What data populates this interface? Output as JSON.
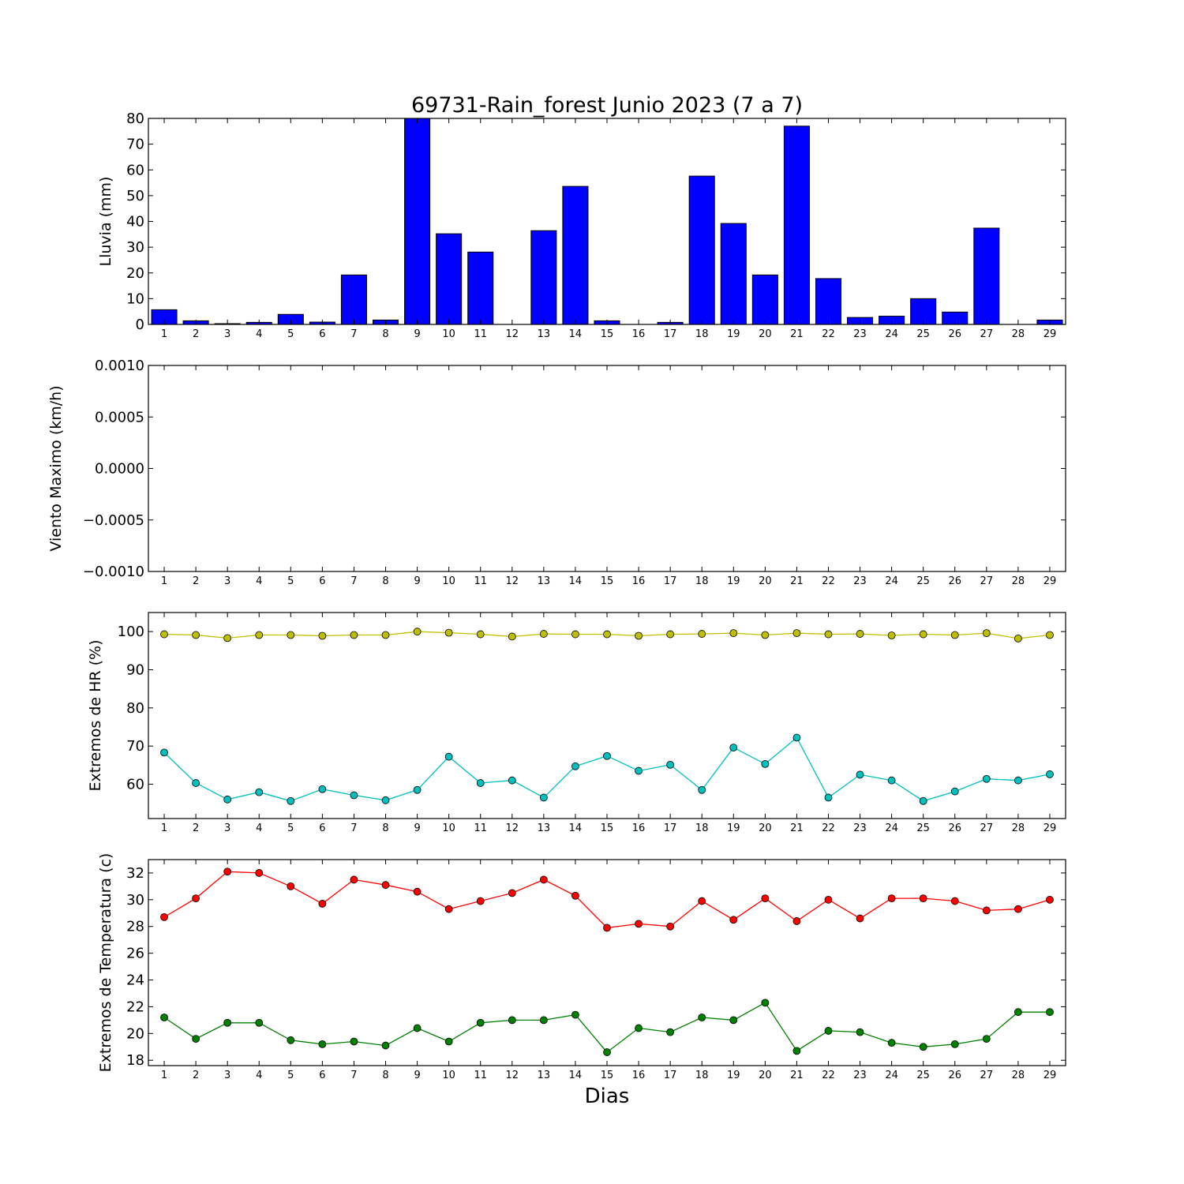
{
  "title": "69731-Rain_forest Junio 2023  (7 a 7)",
  "xlabel": "Dias",
  "chart_data": [
    {
      "type": "bar",
      "ylabel": "Lluvia (mm)",
      "ylim": [
        0,
        80
      ],
      "yticks": [
        "0",
        "10",
        "20",
        "30",
        "40",
        "50",
        "60",
        "70",
        "80"
      ],
      "categories": [
        "1",
        "2",
        "3",
        "4",
        "5",
        "6",
        "7",
        "8",
        "9",
        "10",
        "11",
        "12",
        "13",
        "14",
        "15",
        "16",
        "17",
        "18",
        "19",
        "20",
        "21",
        "22",
        "23",
        "24",
        "25",
        "26",
        "27",
        "28",
        "29"
      ],
      "values": [
        5.7,
        1.4,
        0.3,
        0.8,
        3.9,
        0.9,
        19.2,
        1.7,
        80.0,
        35.2,
        28.1,
        0.0,
        36.4,
        53.6,
        1.4,
        0.0,
        0.8,
        57.6,
        39.2,
        19.2,
        77.0,
        17.8,
        2.7,
        3.2,
        10.0,
        4.8,
        37.4,
        0.0,
        1.7
      ],
      "color": "#0000ff"
    },
    {
      "type": "line",
      "ylabel": "Viento Maximo (km/h)",
      "ylim": [
        -0.001,
        0.001
      ],
      "yticks": [
        "0.0010",
        "0.0005",
        "0.0000",
        "−0.0005",
        "−0.0010"
      ],
      "categories": [
        "1",
        "2",
        "3",
        "4",
        "5",
        "6",
        "7",
        "8",
        "9",
        "10",
        "11",
        "12",
        "13",
        "14",
        "15",
        "16",
        "17",
        "18",
        "19",
        "20",
        "21",
        "22",
        "23",
        "24",
        "25",
        "26",
        "27",
        "28",
        "29"
      ],
      "series": []
    },
    {
      "type": "line",
      "ylabel": "Extremos de HR (%)",
      "ylim": [
        51,
        105
      ],
      "yticks": [
        "60",
        "70",
        "80",
        "90",
        "100"
      ],
      "yticks_values": [
        60,
        70,
        80,
        90,
        100
      ],
      "categories": [
        "1",
        "2",
        "3",
        "4",
        "5",
        "6",
        "7",
        "8",
        "9",
        "10",
        "11",
        "12",
        "13",
        "14",
        "15",
        "16",
        "17",
        "18",
        "19",
        "20",
        "21",
        "22",
        "23",
        "24",
        "25",
        "26",
        "27",
        "28",
        "29"
      ],
      "series": [
        {
          "color": "#bfbf00",
          "values": [
            99.3,
            99.1,
            98.3,
            99.1,
            99.1,
            98.9,
            99.1,
            99.1,
            100.0,
            99.7,
            99.3,
            98.7,
            99.4,
            99.3,
            99.3,
            98.9,
            99.3,
            99.4,
            99.6,
            99.1,
            99.6,
            99.3,
            99.4,
            99.0,
            99.3,
            99.1,
            99.6,
            98.2,
            99.1
          ]
        },
        {
          "color": "#00bfbf",
          "values": [
            68.3,
            60.3,
            56.0,
            57.9,
            55.6,
            58.7,
            57.1,
            55.8,
            58.5,
            67.2,
            60.3,
            61.0,
            56.5,
            64.7,
            67.4,
            63.5,
            65.1,
            58.5,
            69.6,
            65.3,
            72.2,
            56.5,
            62.5,
            61.0,
            55.6,
            58.1,
            61.4,
            61.0,
            62.6
          ]
        }
      ]
    },
    {
      "type": "line",
      "ylabel": "Extremos de Temperatura (c)",
      "ylim": [
        17.6,
        33.0
      ],
      "yticks": [
        "18",
        "20",
        "22",
        "24",
        "26",
        "28",
        "30",
        "32"
      ],
      "yticks_values": [
        18,
        20,
        22,
        24,
        26,
        28,
        30,
        32
      ],
      "categories": [
        "1",
        "2",
        "3",
        "4",
        "5",
        "6",
        "7",
        "8",
        "9",
        "10",
        "11",
        "12",
        "13",
        "14",
        "15",
        "16",
        "17",
        "18",
        "19",
        "20",
        "21",
        "22",
        "23",
        "24",
        "25",
        "26",
        "27",
        "28",
        "29"
      ],
      "series": [
        {
          "color": "#ff0000",
          "values": [
            28.7,
            30.1,
            32.1,
            32.0,
            31.0,
            29.7,
            31.5,
            31.1,
            30.6,
            29.3,
            29.9,
            30.5,
            31.5,
            30.3,
            27.9,
            28.2,
            28.0,
            29.9,
            28.5,
            30.1,
            28.4,
            30.0,
            28.6,
            30.1,
            30.1,
            29.9,
            29.2,
            29.3,
            30.0
          ]
        },
        {
          "color": "#008000",
          "values": [
            21.2,
            19.6,
            20.8,
            20.8,
            19.5,
            19.2,
            19.4,
            19.1,
            20.4,
            19.4,
            20.8,
            21.0,
            21.0,
            21.4,
            18.6,
            20.4,
            20.1,
            21.2,
            21.0,
            22.3,
            18.7,
            20.2,
            20.1,
            19.3,
            19.0,
            19.2,
            19.6,
            21.6,
            21.6
          ]
        }
      ]
    }
  ]
}
